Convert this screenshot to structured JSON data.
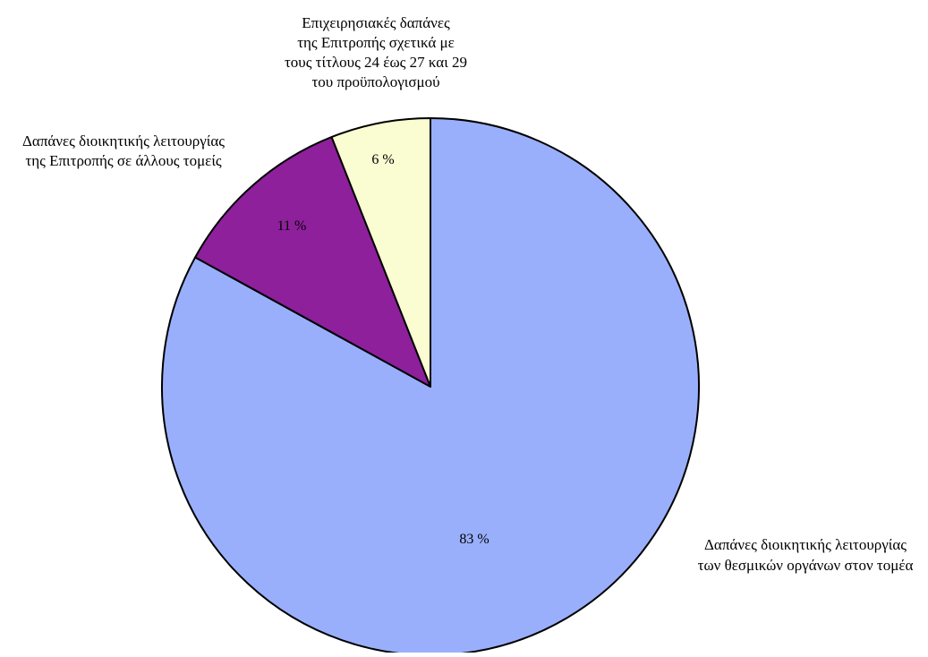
{
  "chart_data": {
    "type": "pie",
    "title": "",
    "start_angle_deg": 0,
    "direction": "clockwise",
    "slices": [
      {
        "category": [
          "Δαπάνες διοικητικής λειτουργίας",
          "των θεσμικών οργάνων στον τομέα"
        ],
        "value": 83,
        "value_label": "83 %",
        "color": "#9aaffc"
      },
      {
        "category": [
          "Δαπάνες διοικητικής λειτουργίας",
          "της Επιτροπής σε άλλους τομείς"
        ],
        "value": 11,
        "value_label": "11 %",
        "color": "#8e209c"
      },
      {
        "category": [
          "Επιχειρησιακές δαπάνες",
          "της Επιτροπής σχετικά με",
          "τους τίτλους 24 έως 27 και 29",
          "του προϋπολογισμού"
        ],
        "value": 6,
        "value_label": "6 %",
        "color": "#fafcd2"
      }
    ],
    "stroke_color": "#000000"
  }
}
